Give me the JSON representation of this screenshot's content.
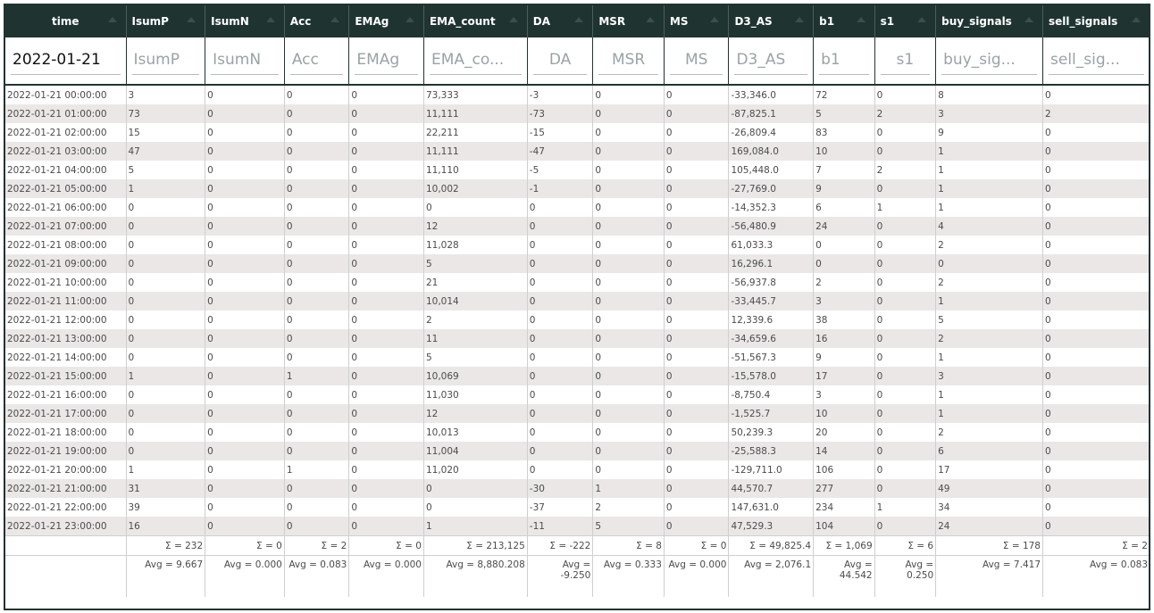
{
  "columns": [
    "time",
    "IsumP",
    "IsumN",
    "Acc",
    "EMAg",
    "EMA_count",
    "DA",
    "MSR",
    "MS",
    "D3_AS",
    "b1",
    "s1",
    "buy_signals",
    "sell_signals"
  ],
  "filters": {
    "time_value": "2022-01-21",
    "placeholders": [
      "IsumP",
      "IsumN",
      "Acc",
      "EMAg",
      "EMA_co...",
      "DA",
      "MSR",
      "MS",
      "D3_AS",
      "b1",
      "s1",
      "buy_sig...",
      "sell_sig..."
    ]
  },
  "rows": [
    [
      "2022-01-21 00:00:00",
      "3",
      "0",
      "0",
      "0",
      "73,333",
      "-3",
      "0",
      "0",
      "-33,346.0",
      "72",
      "0",
      "8",
      "0"
    ],
    [
      "2022-01-21 01:00:00",
      "73",
      "0",
      "0",
      "0",
      "11,111",
      "-73",
      "0",
      "0",
      "-87,825.1",
      "5",
      "2",
      "3",
      "2"
    ],
    [
      "2022-01-21 02:00:00",
      "15",
      "0",
      "0",
      "0",
      "22,211",
      "-15",
      "0",
      "0",
      "-26,809.4",
      "83",
      "0",
      "9",
      "0"
    ],
    [
      "2022-01-21 03:00:00",
      "47",
      "0",
      "0",
      "0",
      "11,111",
      "-47",
      "0",
      "0",
      "169,084.0",
      "10",
      "0",
      "1",
      "0"
    ],
    [
      "2022-01-21 04:00:00",
      "5",
      "0",
      "0",
      "0",
      "11,110",
      "-5",
      "0",
      "0",
      "105,448.0",
      "7",
      "2",
      "1",
      "0"
    ],
    [
      "2022-01-21 05:00:00",
      "1",
      "0",
      "0",
      "0",
      "10,002",
      "-1",
      "0",
      "0",
      "-27,769.0",
      "9",
      "0",
      "1",
      "0"
    ],
    [
      "2022-01-21 06:00:00",
      "0",
      "0",
      "0",
      "0",
      "0",
      "0",
      "0",
      "0",
      "-14,352.3",
      "6",
      "1",
      "1",
      "0"
    ],
    [
      "2022-01-21 07:00:00",
      "0",
      "0",
      "0",
      "0",
      "12",
      "0",
      "0",
      "0",
      "-56,480.9",
      "24",
      "0",
      "4",
      "0"
    ],
    [
      "2022-01-21 08:00:00",
      "0",
      "0",
      "0",
      "0",
      "11,028",
      "0",
      "0",
      "0",
      "61,033.3",
      "0",
      "0",
      "2",
      "0"
    ],
    [
      "2022-01-21 09:00:00",
      "0",
      "0",
      "0",
      "0",
      "5",
      "0",
      "0",
      "0",
      "16,296.1",
      "0",
      "0",
      "0",
      "0"
    ],
    [
      "2022-01-21 10:00:00",
      "0",
      "0",
      "0",
      "0",
      "21",
      "0",
      "0",
      "0",
      "-56,937.8",
      "2",
      "0",
      "2",
      "0"
    ],
    [
      "2022-01-21 11:00:00",
      "0",
      "0",
      "0",
      "0",
      "10,014",
      "0",
      "0",
      "0",
      "-33,445.7",
      "3",
      "0",
      "1",
      "0"
    ],
    [
      "2022-01-21 12:00:00",
      "0",
      "0",
      "0",
      "0",
      "2",
      "0",
      "0",
      "0",
      "12,339.6",
      "38",
      "0",
      "5",
      "0"
    ],
    [
      "2022-01-21 13:00:00",
      "0",
      "0",
      "0",
      "0",
      "11",
      "0",
      "0",
      "0",
      "-34,659.6",
      "16",
      "0",
      "2",
      "0"
    ],
    [
      "2022-01-21 14:00:00",
      "0",
      "0",
      "0",
      "0",
      "5",
      "0",
      "0",
      "0",
      "-51,567.3",
      "9",
      "0",
      "1",
      "0"
    ],
    [
      "2022-01-21 15:00:00",
      "1",
      "0",
      "1",
      "0",
      "10,069",
      "0",
      "0",
      "0",
      "-15,578.0",
      "17",
      "0",
      "3",
      "0"
    ],
    [
      "2022-01-21 16:00:00",
      "0",
      "0",
      "0",
      "0",
      "11,030",
      "0",
      "0",
      "0",
      "-8,750.4",
      "3",
      "0",
      "1",
      "0"
    ],
    [
      "2022-01-21 17:00:00",
      "0",
      "0",
      "0",
      "0",
      "12",
      "0",
      "0",
      "0",
      "-1,525.7",
      "10",
      "0",
      "1",
      "0"
    ],
    [
      "2022-01-21 18:00:00",
      "0",
      "0",
      "0",
      "0",
      "10,013",
      "0",
      "0",
      "0",
      "50,239.3",
      "20",
      "0",
      "2",
      "0"
    ],
    [
      "2022-01-21 19:00:00",
      "0",
      "0",
      "0",
      "0",
      "11,004",
      "0",
      "0",
      "0",
      "-25,588.3",
      "14",
      "0",
      "6",
      "0"
    ],
    [
      "2022-01-21 20:00:00",
      "1",
      "0",
      "1",
      "0",
      "11,020",
      "0",
      "0",
      "0",
      "-129,711.0",
      "106",
      "0",
      "17",
      "0"
    ],
    [
      "2022-01-21 21:00:00",
      "31",
      "0",
      "0",
      "0",
      "0",
      "-30",
      "1",
      "0",
      "44,570.7",
      "277",
      "0",
      "49",
      "0"
    ],
    [
      "2022-01-21 22:00:00",
      "39",
      "0",
      "0",
      "0",
      "0",
      "-37",
      "2",
      "0",
      "147,631.0",
      "234",
      "1",
      "34",
      "0"
    ],
    [
      "2022-01-21 23:00:00",
      "16",
      "0",
      "0",
      "0",
      "1",
      "-11",
      "5",
      "0",
      "47,529.3",
      "104",
      "0",
      "24",
      "0"
    ]
  ],
  "sums": [
    "Σ = 232",
    "Σ = 0",
    "Σ = 2",
    "Σ = 0",
    "Σ = 213,125",
    "Σ = -222",
    "Σ = 8",
    "Σ = 0",
    "Σ = 49,825.4",
    "Σ = 1,069",
    "Σ = 6",
    "Σ = 178",
    "Σ = 2"
  ],
  "avgs": [
    "Avg = 9.667",
    "Avg = 0.000",
    "Avg = 0.083",
    "Avg = 0.000",
    "Avg = 8,880.208",
    "Avg = -9.250",
    "Avg = 0.333",
    "Avg = 0.000",
    "Avg = 2,076.1",
    "Avg = 44.542",
    "Avg = 0.250",
    "Avg = 7.417",
    "Avg = 0.083"
  ],
  "colors": {
    "header_bg": "#1f3431",
    "row_stripe": "#ebe7e7",
    "text": "#4b4b4b"
  }
}
